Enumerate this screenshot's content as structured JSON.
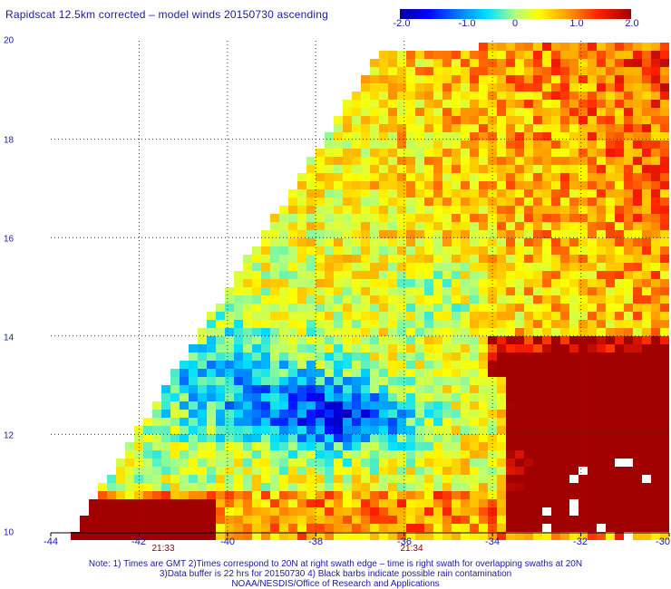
{
  "title": "Rapidscat 12.5km corrected – model winds 20150730 ascending",
  "colorbar": {
    "labels": [
      "-2.0",
      "-1.0",
      "0",
      "1.0",
      "2.0"
    ],
    "stops": [
      "#00009a",
      "#0000ff",
      "#0080ff",
      "#00e0ff",
      "#b0ff80",
      "#ffff00",
      "#ffa000",
      "#ff2000",
      "#a00000"
    ],
    "min": -2.0,
    "max": 2.0
  },
  "map": {
    "lat_ticks": [
      "20",
      "18",
      "16",
      "14",
      "12",
      "10"
    ],
    "lon_ticks": [
      "-44",
      "-42",
      "-40",
      "-38",
      "-36",
      "-34",
      "-32",
      "-30"
    ],
    "lat_range": [
      10,
      20
    ],
    "lon_range": [
      -44,
      -30
    ],
    "grid": true,
    "swath_times": [
      {
        "label": "21:33",
        "lon": -42
      },
      {
        "label": "21:34",
        "lon": -36
      }
    ]
  },
  "notes": {
    "line1": "Note: 1) Times are GMT 2)Times correspond to 20N at right swath edge – time is right swath for overlapping swaths at 20N",
    "line2": "3)Data buffer is 22 hrs for 20150730 4) Black barbs indicate possible rain contamination",
    "line3": "NOAA/NESDIS/Office of Research and Applications"
  }
}
